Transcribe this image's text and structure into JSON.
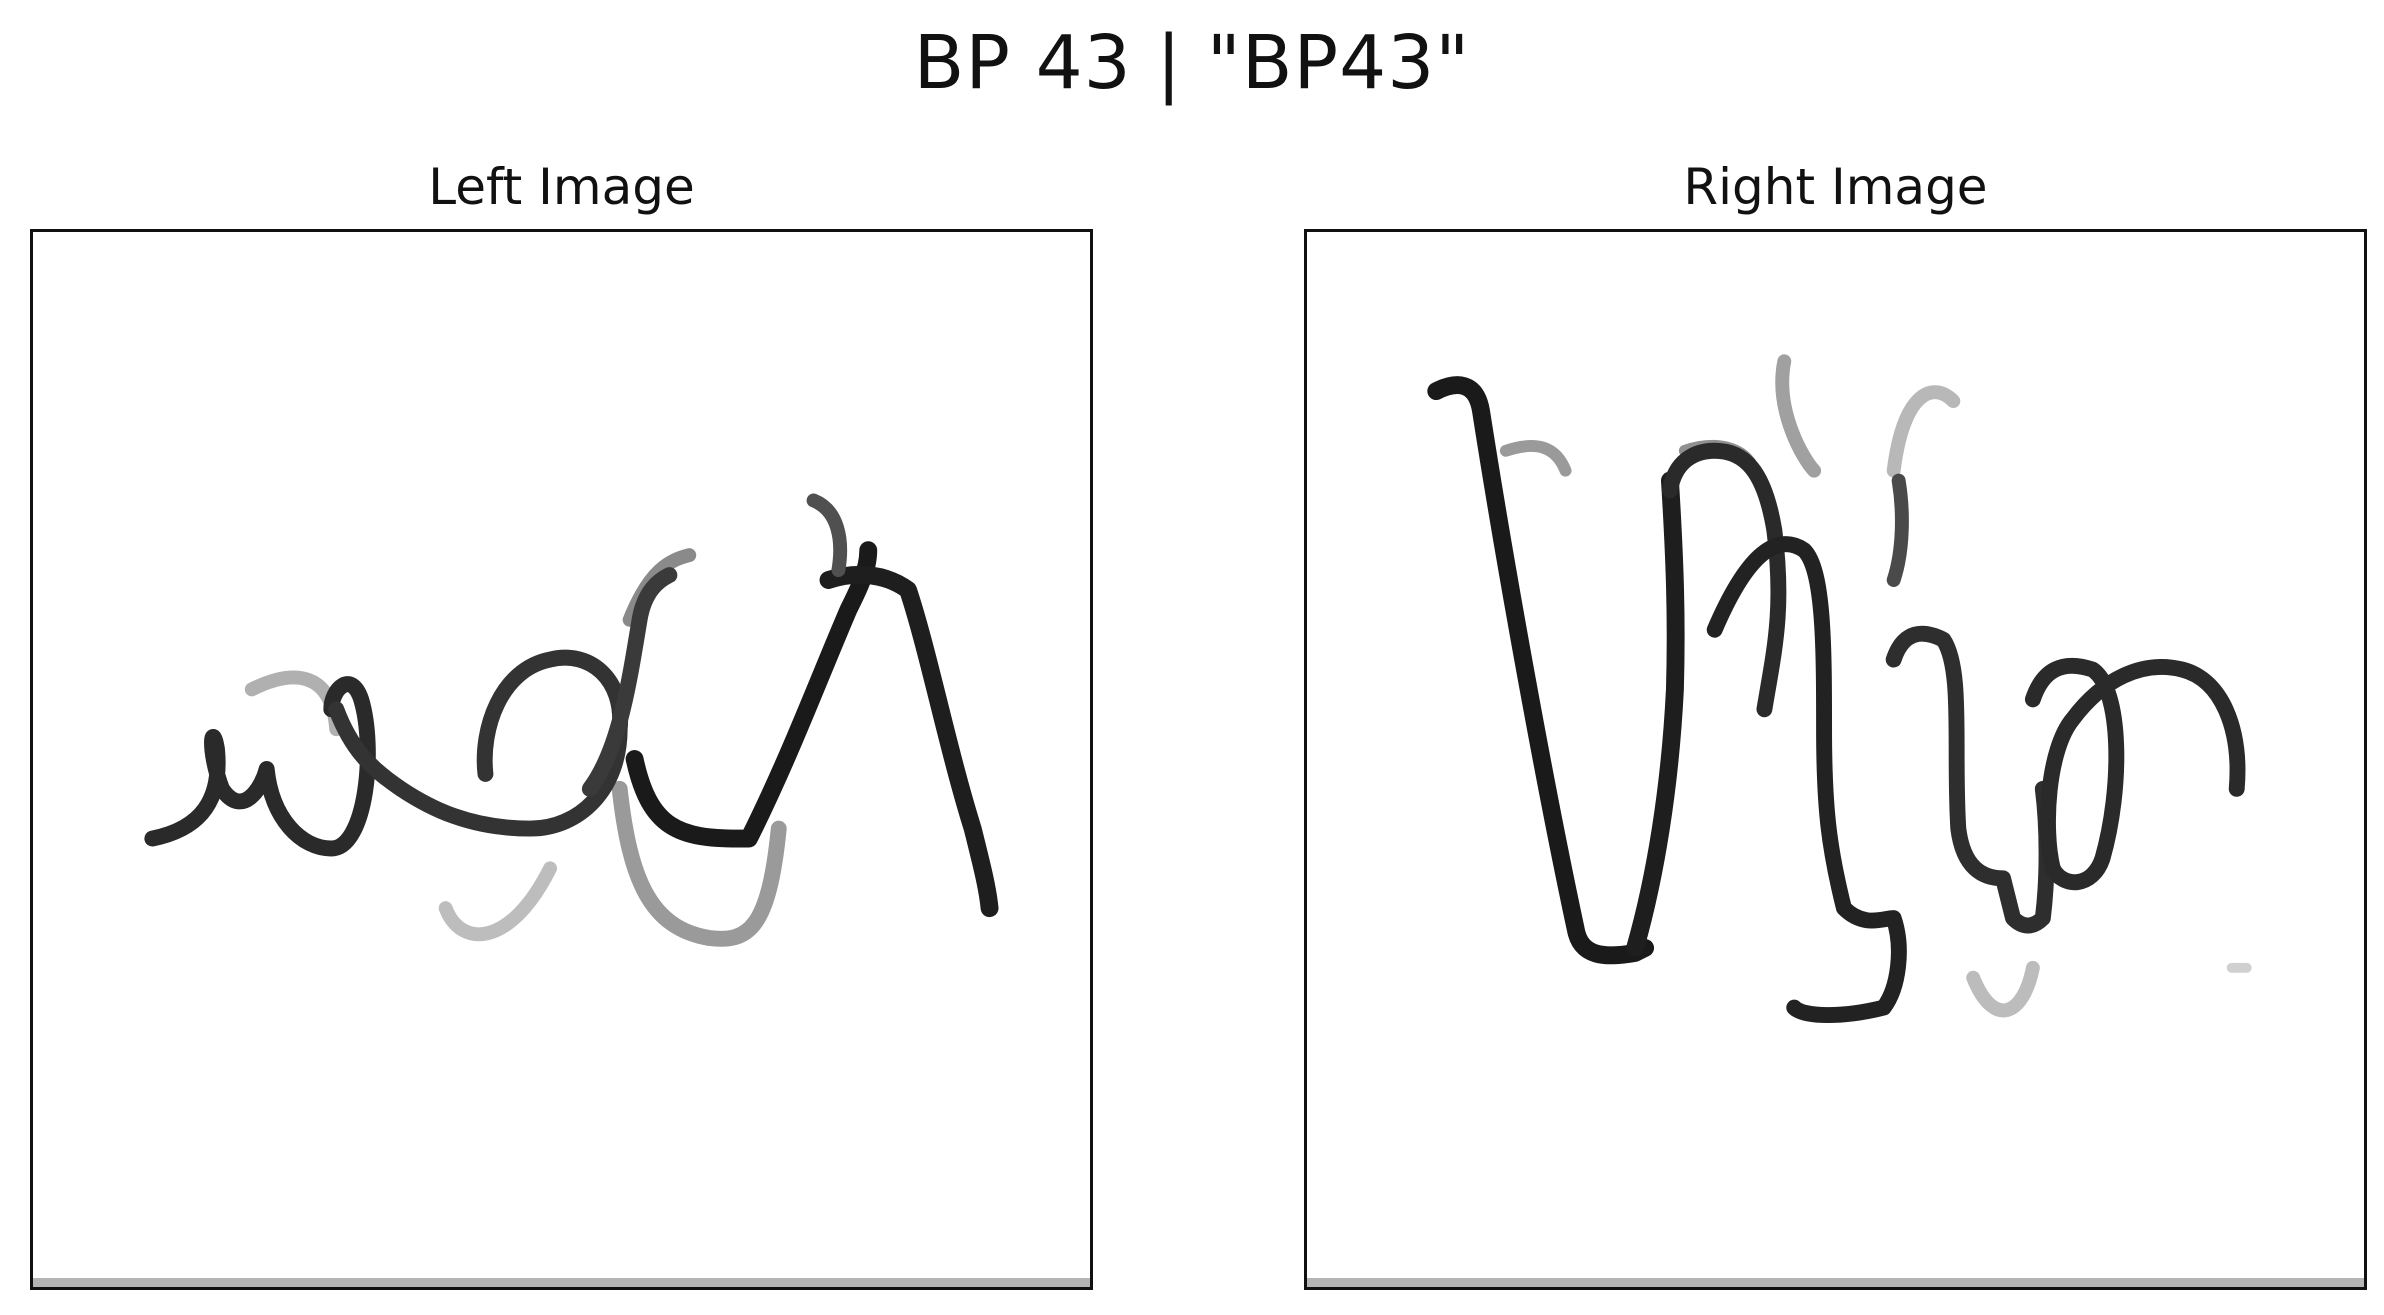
{
  "figure": {
    "title": "BP 43 | \"BP43\""
  },
  "panels": {
    "left": {
      "title": "Left Image",
      "content": "handwritten-scribble"
    },
    "right": {
      "title": "Right Image",
      "content": "handwritten-scribble"
    }
  }
}
